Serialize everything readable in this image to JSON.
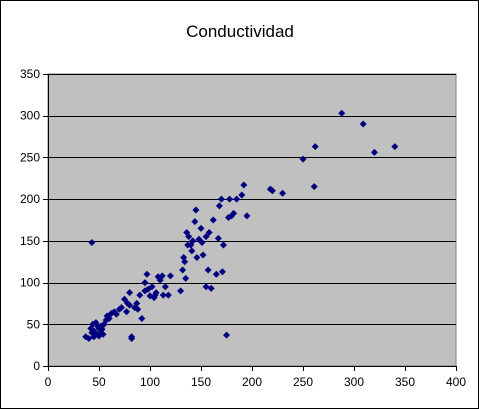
{
  "chart_data": {
    "type": "scatter",
    "title": "Conductividad",
    "xlim": [
      0,
      400
    ],
    "ylim": [
      0,
      350
    ],
    "x_ticks": [
      0,
      50,
      100,
      150,
      200,
      250,
      300,
      350,
      400
    ],
    "y_ticks": [
      0,
      50,
      100,
      150,
      200,
      250,
      300,
      350
    ],
    "grid": "horizontal",
    "marker": "diamond",
    "colors": {
      "plot_background": "#c0c0c0",
      "marker": "#000080",
      "gridline": "#000000"
    },
    "series": [
      {
        "points": [
          [
            37,
            35
          ],
          [
            40,
            33
          ],
          [
            42,
            45
          ],
          [
            43,
            40
          ],
          [
            44,
            50
          ],
          [
            45,
            35
          ],
          [
            45,
            42
          ],
          [
            47,
            52
          ],
          [
            48,
            38
          ],
          [
            49,
            47
          ],
          [
            50,
            36
          ],
          [
            50,
            45
          ],
          [
            52,
            40
          ],
          [
            52,
            48
          ],
          [
            53,
            44
          ],
          [
            54,
            38
          ],
          [
            55,
            50
          ],
          [
            57,
            55
          ],
          [
            58,
            60
          ],
          [
            60,
            57
          ],
          [
            62,
            63
          ],
          [
            65,
            65
          ],
          [
            67,
            62
          ],
          [
            70,
            68
          ],
          [
            72,
            70
          ],
          [
            75,
            80
          ],
          [
            77,
            65
          ],
          [
            78,
            75
          ],
          [
            80,
            73
          ],
          [
            80,
            88
          ],
          [
            82,
            33
          ],
          [
            82,
            35
          ],
          [
            85,
            70
          ],
          [
            87,
            75
          ],
          [
            88,
            68
          ],
          [
            90,
            85
          ],
          [
            92,
            57
          ],
          [
            95,
            90
          ],
          [
            95,
            100
          ],
          [
            97,
            110
          ],
          [
            98,
            92
          ],
          [
            100,
            84
          ],
          [
            102,
            95
          ],
          [
            104,
            82
          ],
          [
            105,
            85
          ],
          [
            106,
            88
          ],
          [
            108,
            107
          ],
          [
            110,
            103
          ],
          [
            112,
            108
          ],
          [
            113,
            85
          ],
          [
            115,
            95
          ],
          [
            118,
            85
          ],
          [
            120,
            108
          ],
          [
            130,
            90
          ],
          [
            132,
            115
          ],
          [
            133,
            130
          ],
          [
            134,
            125
          ],
          [
            135,
            105
          ],
          [
            136,
            160
          ],
          [
            137,
            145
          ],
          [
            138,
            155
          ],
          [
            140,
            145
          ],
          [
            141,
            138
          ],
          [
            142,
            150
          ],
          [
            144,
            173
          ],
          [
            145,
            187
          ],
          [
            146,
            130
          ],
          [
            148,
            152
          ],
          [
            150,
            165
          ],
          [
            151,
            148
          ],
          [
            152,
            133
          ],
          [
            155,
            95
          ],
          [
            155,
            155
          ],
          [
            157,
            115
          ],
          [
            158,
            160
          ],
          [
            160,
            93
          ],
          [
            162,
            175
          ],
          [
            165,
            110
          ],
          [
            167,
            153
          ],
          [
            168,
            192
          ],
          [
            170,
            200
          ],
          [
            171,
            113
          ],
          [
            172,
            145
          ],
          [
            175,
            37
          ],
          [
            177,
            178
          ],
          [
            178,
            200
          ],
          [
            180,
            180
          ],
          [
            182,
            183
          ],
          [
            185,
            200
          ],
          [
            190,
            205
          ],
          [
            192,
            217
          ],
          [
            195,
            180
          ],
          [
            218,
            212
          ],
          [
            220,
            210
          ],
          [
            230,
            207
          ],
          [
            250,
            248
          ],
          [
            262,
            263
          ],
          [
            261,
            215
          ],
          [
            288,
            303
          ],
          [
            309,
            290
          ],
          [
            320,
            256
          ],
          [
            340,
            263
          ],
          [
            43,
            148
          ]
        ]
      }
    ]
  }
}
